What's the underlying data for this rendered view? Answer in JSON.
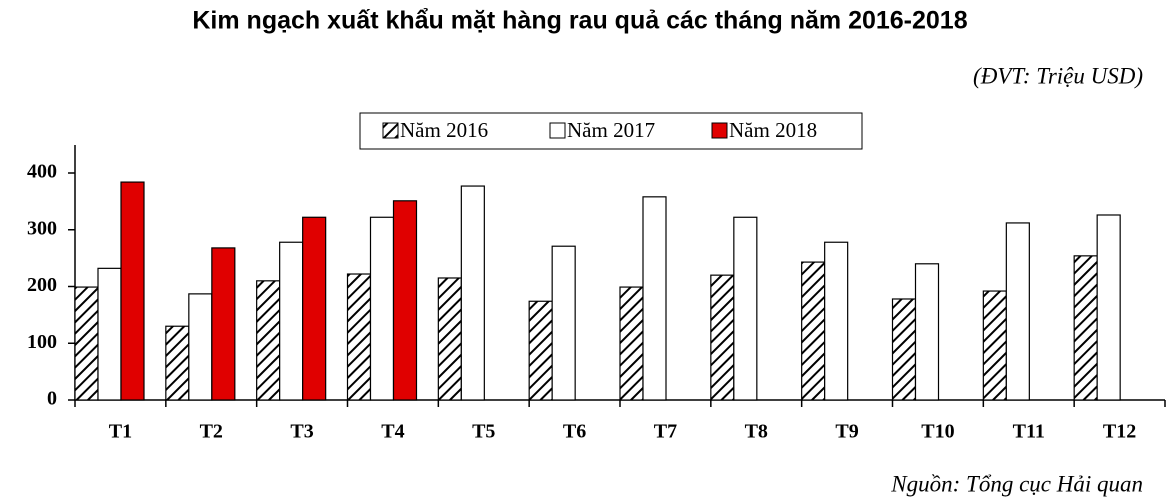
{
  "chart_data": {
    "type": "bar",
    "title": "Kim ngạch xuất khẩu mặt hàng rau quả các tháng năm 2016-2018",
    "subtitle": "(ĐVT: Triệu USD)",
    "source": "Nguồn: Tổng cục Hải quan",
    "categories": [
      "T1",
      "T2",
      "T3",
      "T4",
      "T5",
      "T6",
      "T7",
      "T8",
      "T9",
      "T10",
      "T11",
      "T12"
    ],
    "series": [
      {
        "name": "Năm 2016",
        "color": "#000000",
        "pattern": "diagonal-hatch",
        "values": [
          199,
          130,
          210,
          222,
          215,
          174,
          199,
          220,
          243,
          178,
          192,
          254
        ]
      },
      {
        "name": "Năm 2017",
        "color": "#ffffff",
        "pattern": "solid",
        "values": [
          232,
          187,
          278,
          322,
          377,
          271,
          358,
          322,
          278,
          240,
          312,
          326
        ]
      },
      {
        "name": "Năm 2018",
        "color": "#e00000",
        "pattern": "solid",
        "values": [
          384,
          268,
          322,
          351,
          null,
          null,
          null,
          null,
          null,
          null,
          null,
          null
        ]
      }
    ],
    "ylim": [
      0,
      400
    ],
    "yticks": [
      0,
      100,
      200,
      300,
      400
    ],
    "grid": false
  }
}
